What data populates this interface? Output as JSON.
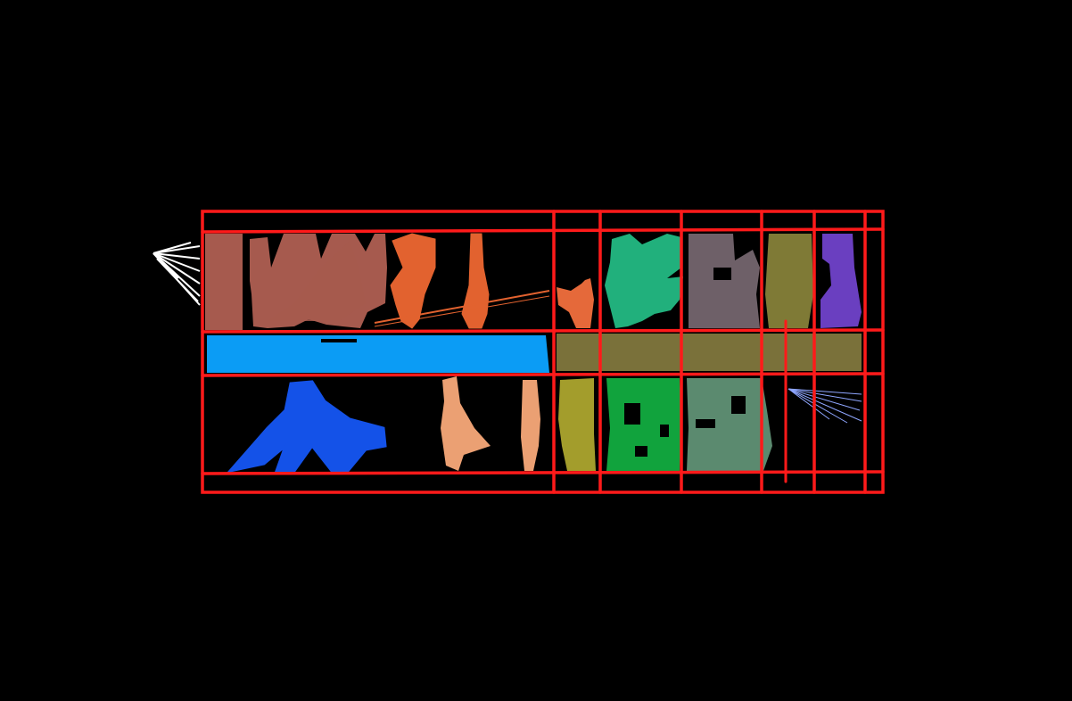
{
  "map": {
    "background": "#000000",
    "grid_line_color": "#ff1a1a",
    "grid_columns": 7,
    "grid_rows": 4
  },
  "rooms": [
    {
      "id": "room-1",
      "color": "#a65a4e"
    },
    {
      "id": "room-2",
      "color": "#e2622f"
    },
    {
      "id": "room-3",
      "color": "#e5693a"
    },
    {
      "id": "room-4",
      "color": "#21b07c"
    },
    {
      "id": "room-5",
      "color": "#6e6068"
    },
    {
      "id": "room-6",
      "color": "#7f7a36"
    },
    {
      "id": "room-7",
      "color": "#6a3fc0"
    },
    {
      "id": "corridor-1",
      "color": "#0b9cf5"
    },
    {
      "id": "corridor-2",
      "color": "#7a713a"
    },
    {
      "id": "room-8",
      "color": "#1452e8"
    },
    {
      "id": "room-9",
      "color": "#eba073"
    },
    {
      "id": "room-10",
      "color": "#a39d2c"
    },
    {
      "id": "room-11",
      "color": "#11a33d"
    },
    {
      "id": "room-12",
      "color": "#5b8a6f"
    },
    {
      "id": "scan-rays",
      "color": "#8fa6ff"
    },
    {
      "id": "scan-fan",
      "color": "#ffffff"
    }
  ]
}
